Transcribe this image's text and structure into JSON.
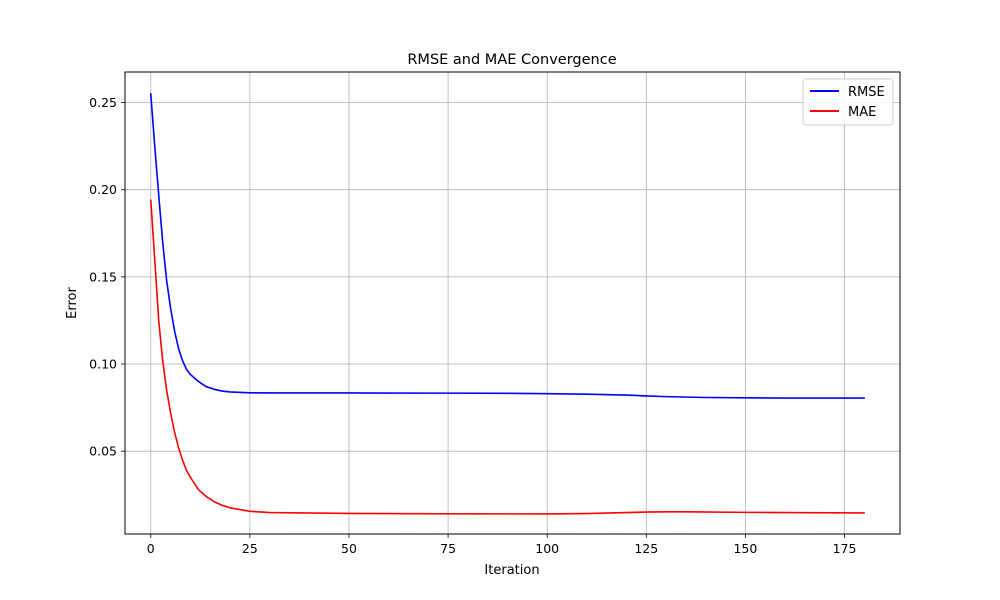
{
  "chart_data": {
    "type": "line",
    "title": "RMSE and MAE Convergence",
    "xlabel": "Iteration",
    "ylabel": "Error",
    "xlim": [
      -6.5,
      189
    ],
    "ylim": [
      0.0025,
      0.2675
    ],
    "xticks": [
      0,
      25,
      50,
      75,
      100,
      125,
      150,
      175
    ],
    "yticks": [
      0.05,
      0.1,
      0.15,
      0.2,
      0.25
    ],
    "ytick_labels": [
      "0.05",
      "0.10",
      "0.15",
      "0.20",
      "0.25"
    ],
    "grid": true,
    "legend_position": "top-right",
    "series": [
      {
        "name": "RMSE",
        "color": "#0000ff",
        "points": [
          [
            0,
            0.255
          ],
          [
            1,
            0.225
          ],
          [
            2,
            0.197
          ],
          [
            3,
            0.17
          ],
          [
            4,
            0.148
          ],
          [
            5,
            0.132
          ],
          [
            6,
            0.119
          ],
          [
            7,
            0.109
          ],
          [
            8,
            0.102
          ],
          [
            9,
            0.097
          ],
          [
            10,
            0.094
          ],
          [
            12,
            0.09
          ],
          [
            14,
            0.087
          ],
          [
            16,
            0.0855
          ],
          [
            18,
            0.0845
          ],
          [
            20,
            0.084
          ],
          [
            25,
            0.0835
          ],
          [
            30,
            0.0834
          ],
          [
            50,
            0.0834
          ],
          [
            75,
            0.0833
          ],
          [
            90,
            0.0832
          ],
          [
            100,
            0.083
          ],
          [
            110,
            0.0827
          ],
          [
            120,
            0.0822
          ],
          [
            125,
            0.0817
          ],
          [
            130,
            0.0813
          ],
          [
            140,
            0.0808
          ],
          [
            150,
            0.0806
          ],
          [
            160,
            0.0805
          ],
          [
            170,
            0.0805
          ],
          [
            180,
            0.0805
          ]
        ]
      },
      {
        "name": "MAE",
        "color": "#ff0000",
        "points": [
          [
            0,
            0.194
          ],
          [
            1,
            0.16
          ],
          [
            2,
            0.125
          ],
          [
            3,
            0.102
          ],
          [
            4,
            0.085
          ],
          [
            5,
            0.072
          ],
          [
            6,
            0.061
          ],
          [
            7,
            0.052
          ],
          [
            8,
            0.045
          ],
          [
            9,
            0.039
          ],
          [
            10,
            0.035
          ],
          [
            12,
            0.028
          ],
          [
            14,
            0.024
          ],
          [
            16,
            0.021
          ],
          [
            18,
            0.019
          ],
          [
            20,
            0.0175
          ],
          [
            25,
            0.0155
          ],
          [
            30,
            0.0148
          ],
          [
            50,
            0.0143
          ],
          [
            75,
            0.0141
          ],
          [
            100,
            0.014
          ],
          [
            110,
            0.0142
          ],
          [
            120,
            0.0148
          ],
          [
            125,
            0.0151
          ],
          [
            130,
            0.0152
          ],
          [
            135,
            0.0152
          ],
          [
            150,
            0.0149
          ],
          [
            165,
            0.0147
          ],
          [
            180,
            0.0146
          ]
        ]
      }
    ]
  }
}
